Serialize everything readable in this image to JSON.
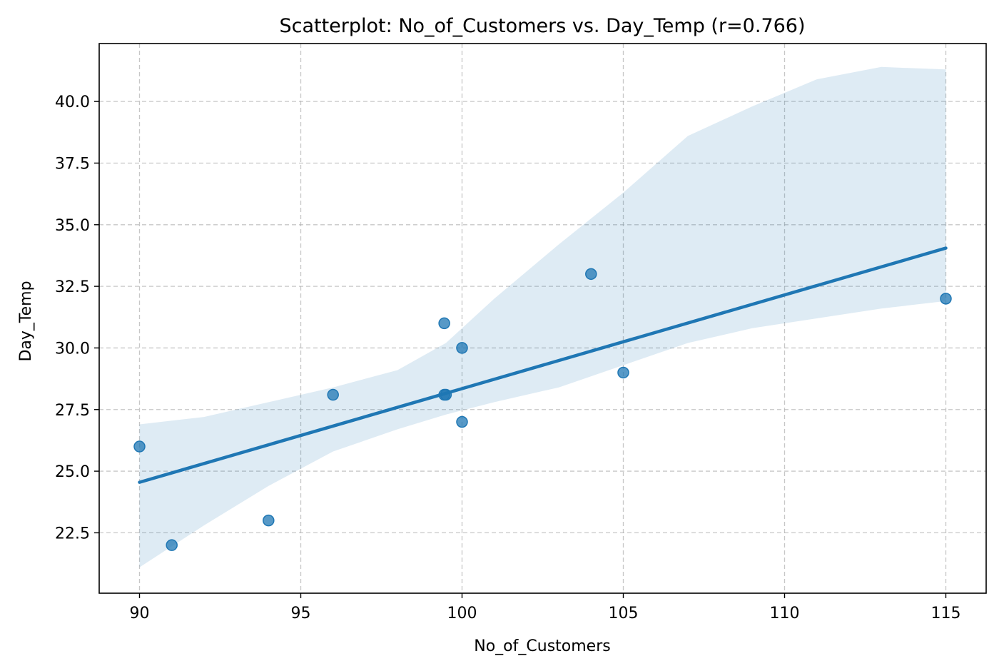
{
  "chart_data": {
    "type": "scatter",
    "title": "Scatterplot: No_of_Customers vs. Day_Temp (r=0.766)",
    "xlabel": "No_of_Customers",
    "ylabel": "Day_Temp",
    "xlim": [
      88.75,
      116.25
    ],
    "ylim": [
      20.05,
      42.35
    ],
    "xticks": [
      90,
      95,
      100,
      105,
      110,
      115
    ],
    "xtick_labels": [
      "90",
      "95",
      "100",
      "105",
      "110",
      "115"
    ],
    "yticks": [
      22.5,
      25.0,
      27.5,
      30.0,
      32.5,
      35.0,
      37.5,
      40.0
    ],
    "ytick_labels": [
      "22.5",
      "25.0",
      "27.5",
      "30.0",
      "32.5",
      "35.0",
      "37.5",
      "40.0"
    ],
    "grid": true,
    "points": [
      {
        "x": 90,
        "y": 26
      },
      {
        "x": 91,
        "y": 22
      },
      {
        "x": 94,
        "y": 23
      },
      {
        "x": 96,
        "y": 28.1
      },
      {
        "x": 99.45,
        "y": 31
      },
      {
        "x": 99.45,
        "y": 28.1
      },
      {
        "x": 99.5,
        "y": 28.1
      },
      {
        "x": 100,
        "y": 30
      },
      {
        "x": 100,
        "y": 27
      },
      {
        "x": 104,
        "y": 33
      },
      {
        "x": 105,
        "y": 29
      },
      {
        "x": 115,
        "y": 32
      }
    ],
    "regression_line": [
      {
        "x": 90,
        "y": 24.55
      },
      {
        "x": 115,
        "y": 34.05
      }
    ],
    "confidence_band": {
      "x": [
        90,
        92,
        94,
        96,
        98,
        99.5,
        101,
        103,
        105,
        107,
        109,
        111,
        113,
        115
      ],
      "upper": [
        26.9,
        27.2,
        27.8,
        28.4,
        29.1,
        30.2,
        32.0,
        34.2,
        36.3,
        38.6,
        39.8,
        40.9,
        41.4,
        41.3
      ],
      "lower": [
        21.1,
        22.8,
        24.4,
        25.8,
        26.7,
        27.3,
        27.8,
        28.4,
        29.3,
        30.2,
        30.8,
        31.2,
        31.6,
        31.9
      ]
    },
    "colors": {
      "point": "#1f77b4",
      "line": "#1f77b4",
      "band": "#1f77b4",
      "grid": "#b0b0b0"
    }
  }
}
